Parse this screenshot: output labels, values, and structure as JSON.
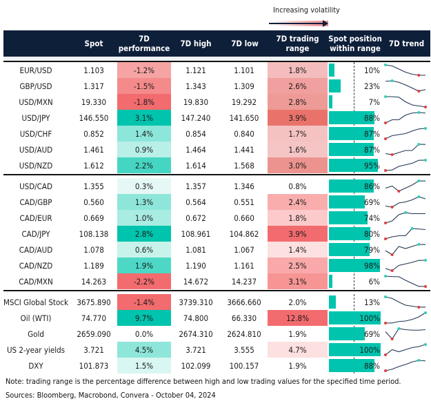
{
  "legend": {
    "label": "Increasing volatility"
  },
  "headers": [
    "",
    "Spot",
    "7D\nperformance",
    "7D high",
    "7D low",
    "7D trading\nrange",
    "Spot position\nwithin range",
    "7D trend"
  ],
  "colors": {
    "header_bg": "#0e1f3a",
    "bar": "#00c4ad",
    "trend_line": "#1f3550",
    "trend_max": "#2ecfb8",
    "trend_min": "#e03c3c"
  },
  "groups": [
    [
      {
        "name": "EUR/USD",
        "spot": "1.103",
        "perf": "-1.2%",
        "perf_color": "#f5a3a3",
        "high": "1.121",
        "low": "1.101",
        "range": "1.8%",
        "range_color": "#f4bcbc",
        "position": 10,
        "trend": [
          1,
          0.9,
          0.6,
          0.3,
          0.1,
          0,
          0
        ]
      },
      {
        "name": "GBP/USD",
        "spot": "1.317",
        "perf": "-1.5%",
        "perf_color": "#f58a8b",
        "high": "1.343",
        "low": "1.309",
        "range": "2.6%",
        "range_color": "#f0a09e",
        "position": 23,
        "trend": [
          0.95,
          1,
          0.85,
          0.6,
          0.3,
          0,
          0.15
        ]
      },
      {
        "name": "USD/MXN",
        "spot": "19.330",
        "perf": "-1.8%",
        "perf_color": "#f26b6e",
        "high": "19.830",
        "low": "19.292",
        "range": "2.8%",
        "range_color": "#ee9a97",
        "position": 7,
        "trend": [
          1,
          1,
          0.95,
          0.5,
          0.2,
          0.1,
          0
        ]
      },
      {
        "name": "USD/JPY",
        "spot": "146.550",
        "perf": "3.1%",
        "perf_color": "#00c4ad",
        "high": "147.240",
        "low": "141.650",
        "range": "3.9%",
        "range_color": "#e9736b",
        "position": 88,
        "trend": [
          0,
          0.3,
          0.3,
          0.75,
          0.95,
          1,
          0.95
        ]
      },
      {
        "name": "USD/CHF",
        "spot": "0.852",
        "perf": "1.4%",
        "perf_color": "#8de6da",
        "high": "0.854",
        "low": "0.840",
        "range": "1.7%",
        "range_color": "#f5c2c2",
        "position": 87,
        "trend": [
          0,
          0.3,
          0.4,
          0.5,
          0.75,
          0.95,
          1
        ]
      },
      {
        "name": "USD/AUD",
        "spot": "1.461",
        "perf": "0.9%",
        "perf_color": "#b8f0e8",
        "high": "1.464",
        "low": "1.441",
        "range": "1.6%",
        "range_color": "#f5c5c5",
        "position": 87,
        "trend": [
          0.1,
          0,
          0.2,
          0.4,
          0.4,
          1,
          0.99
        ]
      },
      {
        "name": "USD/NZD",
        "spot": "1.612",
        "perf": "2.2%",
        "perf_color": "#45d6c3",
        "high": "1.614",
        "low": "1.568",
        "range": "3.0%",
        "range_color": "#ec938f",
        "position": 95,
        "trend": [
          0,
          0.05,
          0.4,
          0.55,
          0.7,
          0.99,
          1
        ]
      }
    ],
    [
      {
        "name": "USD/CAD",
        "spot": "1.355",
        "perf": "0.3%",
        "perf_color": "#e5f8f5",
        "high": "1.357",
        "low": "1.346",
        "range": "0.8%",
        "range_color": "#ffffff",
        "position": 86,
        "trend": [
          0.3,
          0.5,
          0,
          0.3,
          0.6,
          1,
          0.99
        ]
      },
      {
        "name": "CAD/GBP",
        "spot": "0.560",
        "perf": "1.3%",
        "perf_color": "#8ee6da",
        "high": "0.564",
        "low": "0.551",
        "range": "2.4%",
        "range_color": "#f9adad",
        "position": 69,
        "trend": [
          0.1,
          0,
          0.4,
          0.5,
          0.7,
          1,
          0.8
        ]
      },
      {
        "name": "CAD/EUR",
        "spot": "0.669",
        "perf": "1.0%",
        "perf_color": "#a8ece2",
        "high": "0.672",
        "low": "0.660",
        "range": "1.8%",
        "range_color": "#fccaca",
        "position": 74,
        "trend": [
          0,
          0.2,
          0.8,
          1,
          0.9,
          0.9,
          0.9
        ]
      },
      {
        "name": "CAD/JPY",
        "spot": "108.138",
        "perf": "2.8%",
        "perf_color": "#00c4ad",
        "high": "108.961",
        "low": "104.862",
        "range": "3.9%",
        "range_color": "#f26b6e",
        "position": 80,
        "trend": [
          0,
          0.2,
          0.3,
          0.3,
          1,
          0.95,
          0.9
        ]
      },
      {
        "name": "CAD/AUD",
        "spot": "1.078",
        "perf": "0.6%",
        "perf_color": "#c8f3ec",
        "high": "1.081",
        "low": "1.067",
        "range": "1.4%",
        "range_color": "#fde0e0",
        "position": 79,
        "trend": [
          0.4,
          0,
          0.8,
          0.6,
          0.8,
          1,
          0.99
        ]
      },
      {
        "name": "CAD/NZD",
        "spot": "1.189",
        "perf": "1.9%",
        "perf_color": "#4dd8c6",
        "high": "1.190",
        "low": "1.161",
        "range": "2.5%",
        "range_color": "#f9a9a9",
        "position": 98,
        "trend": [
          0.2,
          0,
          0.5,
          0.65,
          0.8,
          0.99,
          1
        ]
      },
      {
        "name": "CAD/MXN",
        "spot": "14.263",
        "perf": "-2.2%",
        "perf_color": "#f26b6e",
        "high": "14.672",
        "low": "14.237",
        "range": "3.1%",
        "range_color": "#f79494",
        "position": 6,
        "trend": [
          1,
          0.95,
          0.95,
          0.6,
          0.3,
          0.01,
          0
        ]
      }
    ],
    [
      {
        "name": "MSCI Global Stock",
        "spot": "3675.890",
        "perf": "-1.4%",
        "perf_color": "#f26b6e",
        "high": "3739.310",
        "low": "3666.660",
        "range": "2.0%",
        "range_color": "#ffffff",
        "position": 13,
        "trend": [
          1,
          0.85,
          0.5,
          0.2,
          0.1,
          0,
          0.01
        ]
      },
      {
        "name": "Oil (WTI)",
        "spot": "74.770",
        "perf": "9.7%",
        "perf_color": "#00c4ad",
        "high": "74.800",
        "low": "66.330",
        "range": "12.8%",
        "range_color": "#f26b6e",
        "position": 100,
        "trend": [
          0,
          0.01,
          0.15,
          0.2,
          0.35,
          0.6,
          1
        ]
      },
      {
        "name": "Gold",
        "spot": "2659.090",
        "perf": "0.0%",
        "perf_color": "#ffffff",
        "high": "2674.310",
        "low": "2624.810",
        "range": "1.9%",
        "range_color": "#ffffff",
        "position": 69,
        "trend": [
          0.7,
          0,
          1,
          0.9,
          0.85,
          0.85,
          0.9
        ]
      },
      {
        "name": "US 2-year yields",
        "spot": "3.721",
        "perf": "4.5%",
        "perf_color": "#8ee6da",
        "high": "3.721",
        "low": "3.555",
        "range": "4.7%",
        "range_color": "#fde0e0",
        "position": 100,
        "trend": [
          0,
          0.5,
          0.3,
          0.5,
          0.7,
          0.8,
          1
        ]
      },
      {
        "name": "DXY",
        "spot": "101.873",
        "perf": "1.5%",
        "perf_color": "#d8f6f2",
        "high": "102.099",
        "low": "100.157",
        "range": "1.9%",
        "range_color": "#ffffff",
        "position": 88,
        "trend": [
          0,
          0.15,
          0.4,
          0.6,
          0.85,
          1,
          0.95
        ]
      }
    ]
  ],
  "footer": {
    "note": "Note: trading range is the percentage difference between high and low trading values for the specified time period.",
    "sources": "Sources: Bloomberg, Macrobond, Convera - October 04, 2024"
  }
}
